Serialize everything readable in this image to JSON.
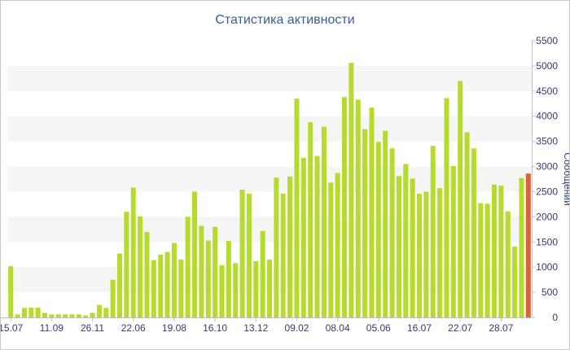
{
  "chart_data": {
    "type": "bar",
    "title": "Статистика активности",
    "xlabel": "",
    "ylabel": "Сообщений",
    "ylim": [
      0,
      5500
    ],
    "y_ticks": [
      0,
      500,
      1000,
      1500,
      2000,
      2500,
      3000,
      3500,
      4000,
      4500,
      5000,
      5500
    ],
    "y_axis_side": "right",
    "grid": "alternating horizontal bands",
    "colors": {
      "bar": "#b5dc2d",
      "last_bar": "#d9643a",
      "band": "#f5f5f5",
      "axis_text": "#333c6e",
      "title": "#3d5a99"
    },
    "x_tick_labels": [
      {
        "index": 0,
        "label": "15.07"
      },
      {
        "index": 6,
        "label": "11.09"
      },
      {
        "index": 12,
        "label": "26.11"
      },
      {
        "index": 18,
        "label": "22.06"
      },
      {
        "index": 24,
        "label": "19.08"
      },
      {
        "index": 30,
        "label": "16.10"
      },
      {
        "index": 36,
        "label": "13.12"
      },
      {
        "index": 42,
        "label": "09.02"
      },
      {
        "index": 48,
        "label": "08.04"
      },
      {
        "index": 54,
        "label": "05.06"
      },
      {
        "index": 60,
        "label": "16.07"
      },
      {
        "index": 66,
        "label": "22.07"
      },
      {
        "index": 72,
        "label": "28.07"
      }
    ],
    "values": [
      1020,
      60,
      190,
      195,
      195,
      90,
      60,
      60,
      60,
      60,
      60,
      40,
      90,
      250,
      190,
      750,
      1270,
      2100,
      2580,
      2010,
      1700,
      1140,
      1250,
      1300,
      1480,
      1150,
      2000,
      2500,
      1820,
      1530,
      1800,
      1040,
      1520,
      1080,
      2540,
      2460,
      1120,
      1720,
      1150,
      2780,
      2460,
      2800,
      4350,
      3170,
      3880,
      3210,
      3790,
      2680,
      2870,
      4380,
      5060,
      4330,
      3740,
      4170,
      3490,
      3710,
      3360,
      2810,
      3050,
      2760,
      2460,
      2500,
      3410,
      2570,
      4360,
      3010,
      4700,
      3680,
      3360,
      2270,
      2260,
      2640,
      2620,
      2110,
      1410,
      2770,
      2860
    ],
    "highlight_last": true
  }
}
